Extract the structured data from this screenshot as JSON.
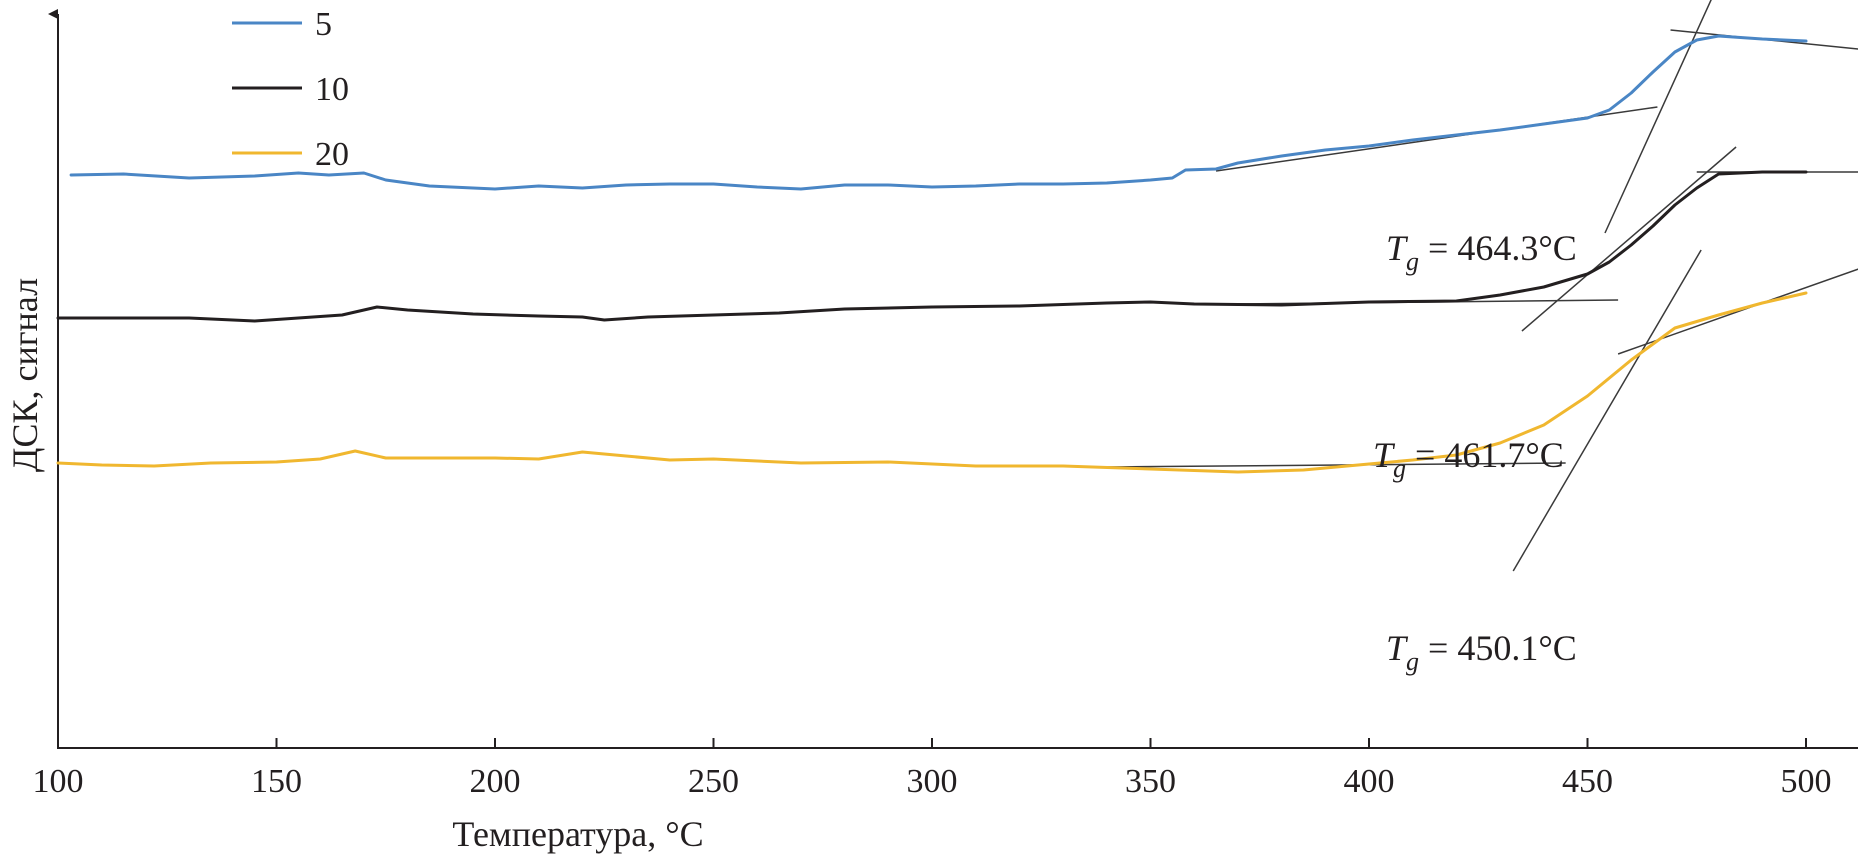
{
  "chart_data": {
    "type": "line",
    "xlabel": "Температура, °С",
    "ylabel": "ДСК, сигнал",
    "xlim": [
      100,
      500
    ],
    "xticks": [
      "100",
      "150",
      "200",
      "250",
      "300",
      "350",
      "400",
      "450",
      "500"
    ],
    "yticks": [],
    "grid": false,
    "legend_position": "top-left",
    "series": [
      {
        "name": "5",
        "color": "#4a86c5",
        "x": [
          103,
          115,
          130,
          145,
          155,
          162,
          170,
          175,
          185,
          195,
          200,
          210,
          220,
          230,
          240,
          250,
          260,
          270,
          280,
          290,
          300,
          310,
          320,
          330,
          340,
          350,
          355,
          358,
          365,
          370,
          380,
          390,
          400,
          410,
          420,
          430,
          440,
          450,
          455,
          460,
          465,
          470,
          475,
          480,
          490,
          500
        ],
        "y": [
          5.73,
          5.74,
          5.7,
          5.72,
          5.75,
          5.73,
          5.75,
          5.68,
          5.62,
          5.6,
          5.59,
          5.62,
          5.6,
          5.63,
          5.64,
          5.64,
          5.61,
          5.59,
          5.63,
          5.63,
          5.61,
          5.62,
          5.64,
          5.64,
          5.65,
          5.68,
          5.7,
          5.78,
          5.79,
          5.85,
          5.92,
          5.98,
          6.02,
          6.08,
          6.13,
          6.18,
          6.24,
          6.3,
          6.38,
          6.55,
          6.76,
          6.96,
          7.08,
          7.12,
          7.09,
          7.07
        ]
      },
      {
        "name": "10",
        "color": "#231f20",
        "x": [
          100,
          115,
          130,
          145,
          155,
          165,
          173,
          180,
          195,
          210,
          220,
          225,
          235,
          250,
          265,
          280,
          300,
          320,
          340,
          350,
          360,
          380,
          400,
          420,
          430,
          440,
          450,
          455,
          460,
          465,
          470,
          475,
          480,
          490,
          500
        ],
        "y": [
          4.3,
          4.3,
          4.3,
          4.27,
          4.3,
          4.33,
          4.41,
          4.38,
          4.34,
          4.32,
          4.31,
          4.28,
          4.31,
          4.33,
          4.35,
          4.39,
          4.41,
          4.42,
          4.45,
          4.46,
          4.44,
          4.43,
          4.46,
          4.47,
          4.53,
          4.61,
          4.74,
          4.86,
          5.03,
          5.22,
          5.43,
          5.6,
          5.74,
          5.76,
          5.76
        ]
      },
      {
        "name": "20",
        "color": "#f0b72f",
        "x": [
          100,
          110,
          122,
          135,
          150,
          160,
          168,
          175,
          185,
          200,
          210,
          220,
          230,
          240,
          250,
          270,
          290,
          310,
          330,
          350,
          370,
          385,
          400,
          410,
          420,
          430,
          440,
          450,
          460,
          470,
          480,
          490,
          500
        ],
        "y": [
          2.85,
          2.83,
          2.82,
          2.85,
          2.86,
          2.89,
          2.97,
          2.9,
          2.9,
          2.9,
          2.89,
          2.96,
          2.92,
          2.88,
          2.89,
          2.85,
          2.86,
          2.82,
          2.82,
          2.79,
          2.76,
          2.78,
          2.84,
          2.88,
          2.93,
          3.05,
          3.23,
          3.52,
          3.88,
          4.2,
          4.33,
          4.45,
          4.55
        ]
      }
    ],
    "tangent_lines": [
      {
        "series": "5",
        "from": [
          365,
          5.77
        ],
        "to": [
          466,
          6.41
        ]
      },
      {
        "series": "5",
        "from": [
          454,
          5.15
        ],
        "to": [
          479,
          7.55
        ]
      },
      {
        "series": "5",
        "from": [
          469,
          7.18
        ],
        "to": [
          512,
          6.99
        ]
      },
      {
        "series": "10",
        "from": [
          370,
          4.44
        ],
        "to": [
          457,
          4.48
        ]
      },
      {
        "series": "10",
        "from": [
          435,
          4.17
        ],
        "to": [
          484,
          6.01
        ]
      },
      {
        "series": "10",
        "from": [
          475,
          5.76
        ],
        "to": [
          512,
          5.76
        ]
      },
      {
        "series": "20",
        "from": [
          340,
          2.81
        ],
        "to": [
          445,
          2.85
        ]
      },
      {
        "series": "20",
        "from": [
          433,
          1.77
        ],
        "to": [
          476,
          4.98
        ]
      },
      {
        "series": "20",
        "from": [
          457,
          3.94
        ],
        "to": [
          512,
          4.79
        ]
      }
    ],
    "annotations": [
      {
        "series": "5",
        "Tg": "464.3°С"
      },
      {
        "series": "10",
        "Tg": "461.7°С"
      },
      {
        "series": "20",
        "Tg": "450.1°С"
      }
    ]
  }
}
